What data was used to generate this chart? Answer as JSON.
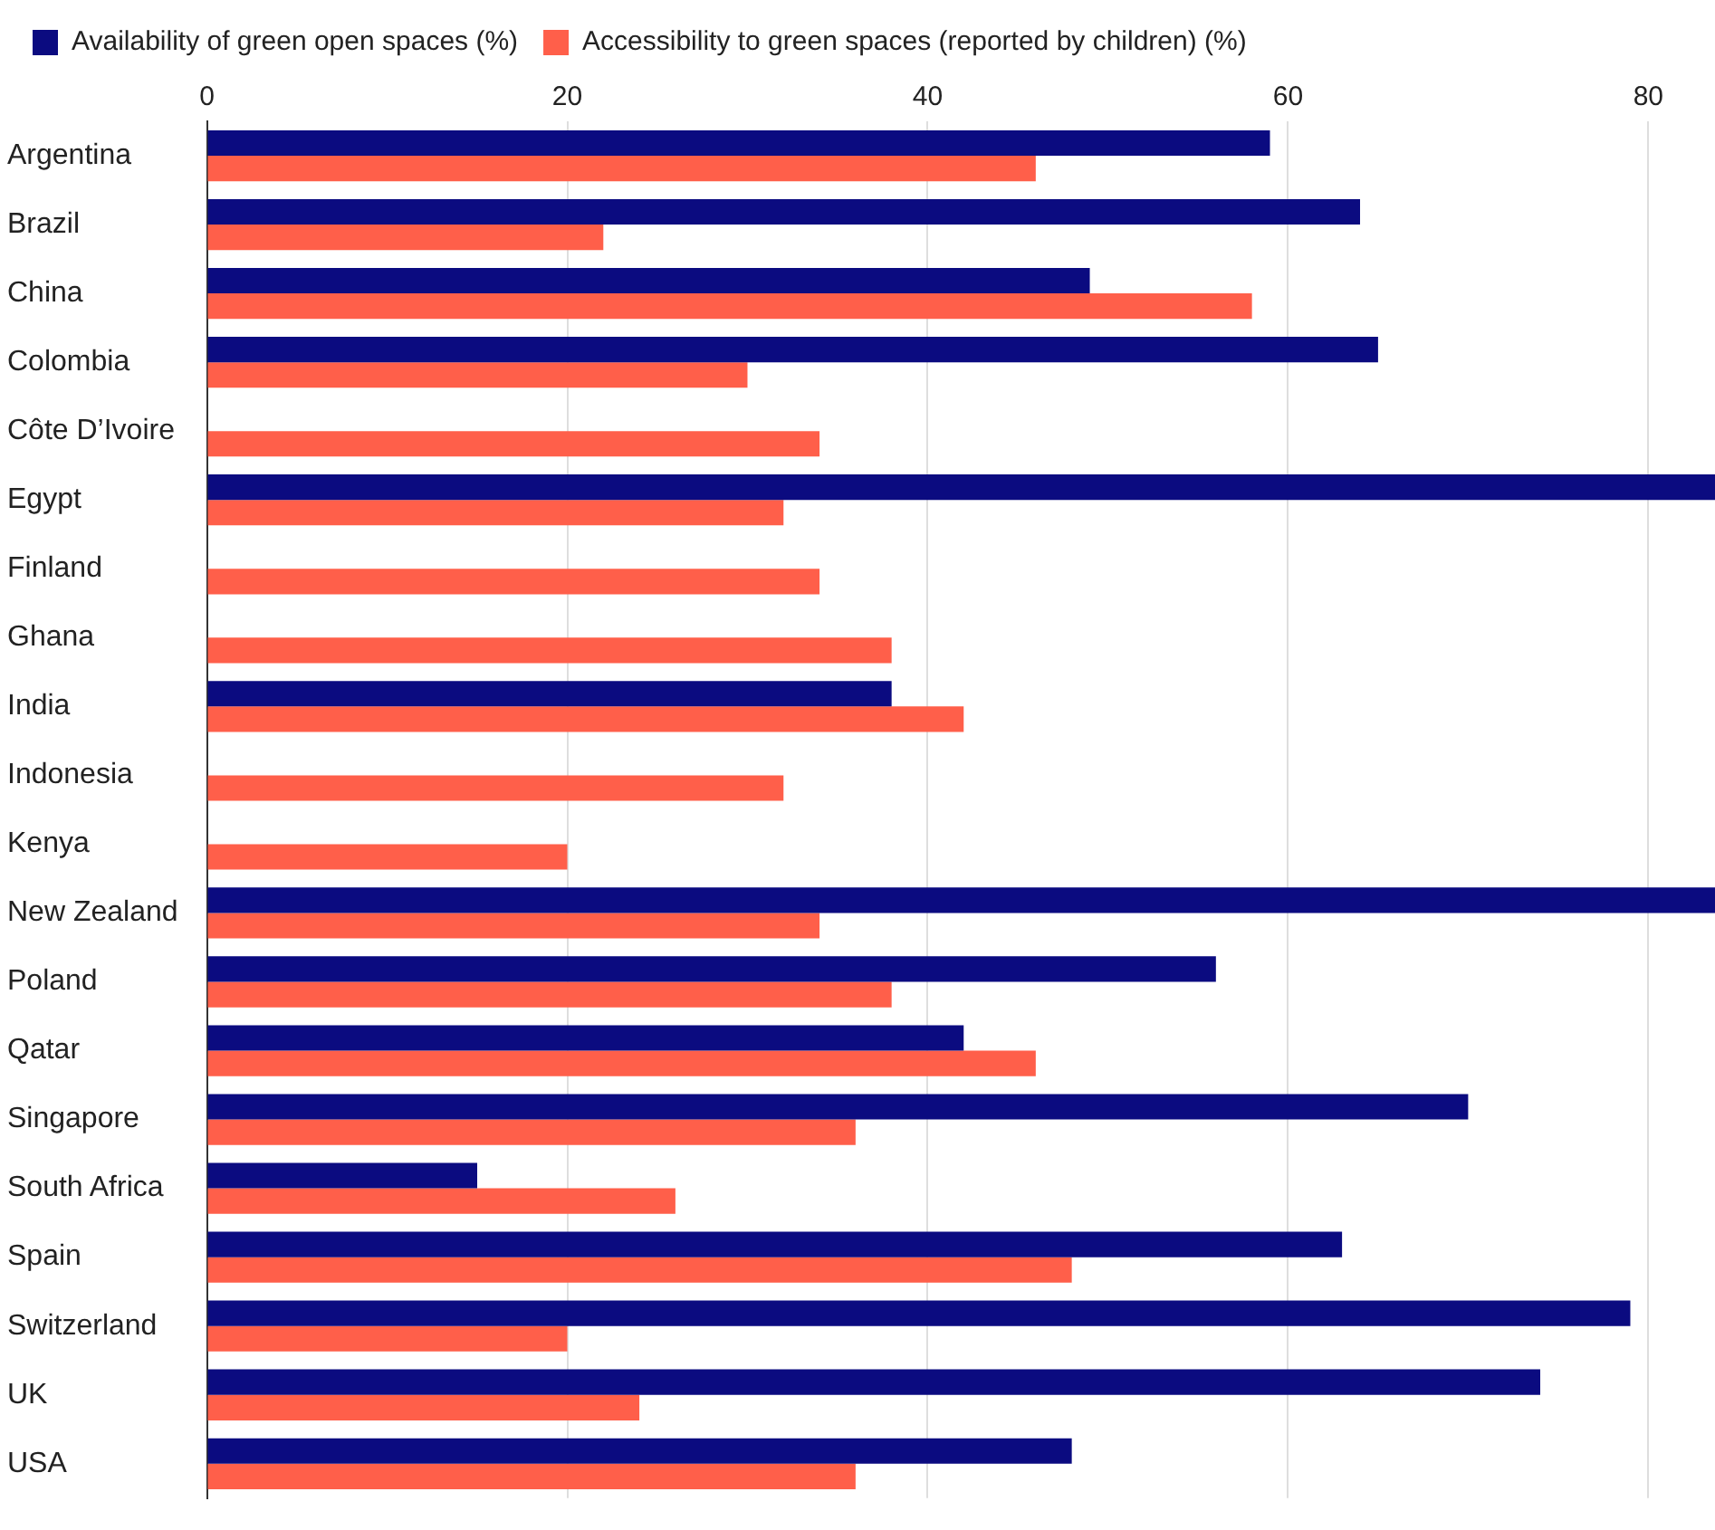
{
  "chart_data": {
    "type": "bar",
    "orientation": "horizontal",
    "categories": [
      "Argentina",
      "Brazil",
      "China",
      "Colombia",
      "Côte D’Ivoire",
      "Egypt",
      "Finland",
      "Ghana",
      "India",
      "Indonesia",
      "Kenya",
      "New Zealand",
      "Poland",
      "Qatar",
      "Singapore",
      "South Africa",
      "Spain",
      "Switzerland",
      "UK",
      "USA"
    ],
    "series": [
      {
        "name": "Availability of green open spaces (%)",
        "color": "#0b0b80",
        "values": [
          59,
          64,
          49,
          65,
          null,
          83.7,
          null,
          null,
          38,
          null,
          null,
          83.7,
          56,
          42,
          70,
          15,
          63,
          79,
          74,
          48
        ]
      },
      {
        "name": "Accessibility to green spaces (reported by children) (%)",
        "color": "#ff5f4a",
        "values": [
          46,
          22,
          58,
          30,
          34,
          32,
          34,
          38,
          42,
          32,
          20,
          34,
          38,
          46,
          36,
          26,
          48,
          20,
          24,
          36
        ]
      }
    ],
    "xlim": [
      0,
      83.7
    ],
    "xticks": [
      0,
      20,
      40,
      60,
      80
    ],
    "grid": "x",
    "legend": "top left"
  }
}
